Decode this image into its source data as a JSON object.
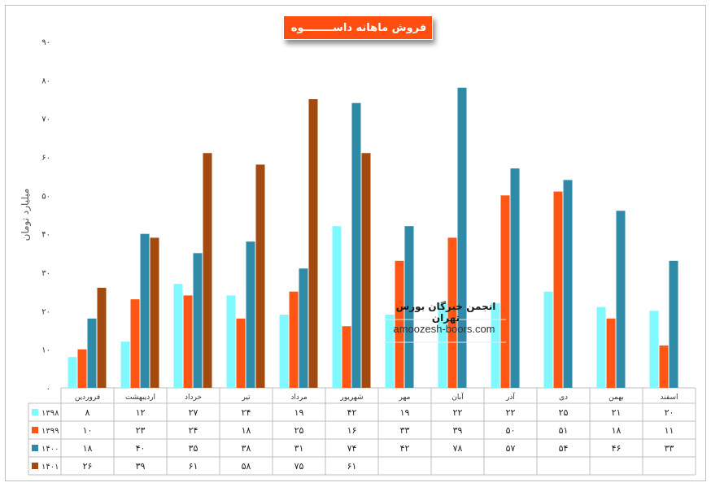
{
  "chart_data": {
    "type": "bar",
    "title": "فروش ماهانه داســــــــوه",
    "ylabel": "میلیارد تومان",
    "ylim": [
      0,
      90
    ],
    "y_ticks": [
      "۰",
      "۱۰",
      "۲۰",
      "۳۰",
      "۴۰",
      "۵۰",
      "۶۰",
      "۷۰",
      "۸۰",
      "۹۰"
    ],
    "categories": [
      "فروردین",
      "اردیبهشت",
      "خرداد",
      "تیر",
      "مرداد",
      "شهریور",
      "مهر",
      "آبان",
      "آذر",
      "دی",
      "بهمن",
      "اسفند"
    ],
    "series": [
      {
        "name": "۱۳۹۸",
        "color": "#7ff9ff",
        "values": [
          8,
          12,
          27,
          24,
          19,
          42,
          19,
          22,
          22,
          25,
          21,
          20
        ],
        "labels": [
          "۸",
          "۱۲",
          "۲۷",
          "۲۴",
          "۱۹",
          "۴۲",
          "۱۹",
          "۲۲",
          "۲۲",
          "۲۵",
          "۲۱",
          "۲۰"
        ]
      },
      {
        "name": "۱۳۹۹",
        "color": "#ff5515",
        "values": [
          10,
          23,
          24,
          18,
          25,
          16,
          33,
          39,
          50,
          51,
          18,
          11
        ],
        "labels": [
          "۱۰",
          "۲۳",
          "۲۴",
          "۱۸",
          "۲۵",
          "۱۶",
          "۳۳",
          "۳۹",
          "۵۰",
          "۵۱",
          "۱۸",
          "۱۱"
        ]
      },
      {
        "name": "۱۴۰۰",
        "color": "#2e8aa6",
        "values": [
          18,
          40,
          35,
          38,
          31,
          74,
          42,
          78,
          57,
          54,
          46,
          33
        ],
        "labels": [
          "۱۸",
          "۴۰",
          "۳۵",
          "۳۸",
          "۳۱",
          "۷۴",
          "۴۲",
          "۷۸",
          "۵۷",
          "۵۴",
          "۴۶",
          "۳۳"
        ]
      },
      {
        "name": "۱۴۰۱",
        "color": "#a24a0f",
        "values": [
          26,
          39,
          61,
          58,
          75,
          61,
          null,
          null,
          null,
          null,
          null,
          null
        ],
        "labels": [
          "۲۶",
          "۳۹",
          "۶۱",
          "۵۸",
          "۷۵",
          "۶۱",
          "",
          "",
          "",
          "",
          "",
          ""
        ]
      }
    ],
    "grid": false,
    "legend": "data-table-below"
  },
  "watermark": {
    "title": "انجمن خبرگان بورس تهران",
    "url": "amoozesh-boors.com"
  }
}
